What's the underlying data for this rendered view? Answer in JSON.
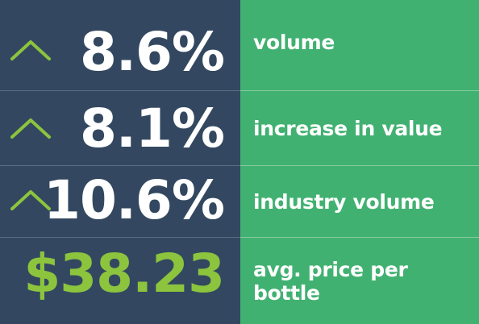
{
  "stats": [
    {
      "value": "8.6%",
      "label": "volume",
      "icon": "chevron-up-icon"
    },
    {
      "value": "8.1%",
      "label": "increase in value",
      "icon": "chevron-up-icon"
    },
    {
      "value": "10.6%",
      "label": "industry volume",
      "icon": "chevron-up-icon"
    },
    {
      "value": "$38.23",
      "label": "avg. price per bottle"
    }
  ],
  "colors": {
    "left_panel": "#334860",
    "right_panel": "#41b171",
    "arrow": "#8cc43e",
    "price": "#8cc43e",
    "text": "#ffffff"
  }
}
